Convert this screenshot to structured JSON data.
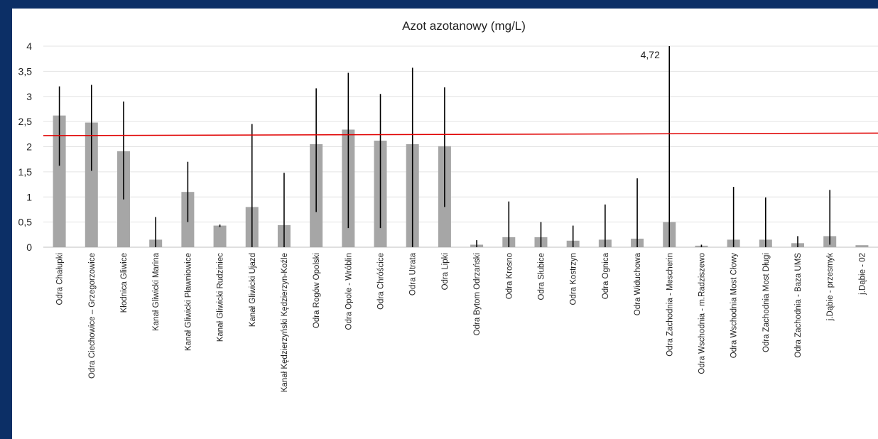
{
  "chart_data": {
    "type": "bar",
    "title": "Azot azotanowy (mg/L)",
    "xlabel": "",
    "ylabel": "",
    "ylim": [
      0,
      4
    ],
    "yticks": [
      "0",
      "0,5",
      "1",
      "1,5",
      "2",
      "2,5",
      "3",
      "3,5",
      "4"
    ],
    "grid": true,
    "legend": "none",
    "bar_color": "#a6a6a6",
    "errorbar_color": "#000000",
    "reference_line": {
      "from": 2.22,
      "to": 2.27,
      "color": "#e00000"
    },
    "annotation": {
      "text": "4,72",
      "category_index": 19
    },
    "categories": [
      "Odra Chałupki",
      "Odra Ciechowice – Grzegorzowice",
      "Kłodnica Gliwice",
      "Kanał Gliwicki Marina",
      "Kanał Gliwicki Pławniowice",
      "Kanał Gliwicki Rudziniec",
      "Kanał Gliwicki Ujazd",
      "Kanał Kędzierzyński Kędzierzyn-Koźle",
      "Odra Rogów Opolski",
      "Odra Opole - Wróblin",
      "Odra Chróścice",
      "Odra Utrata",
      "Odra Lipki",
      "Odra Bytom Odrzański",
      "Odra Krosno",
      "Odra Słubice",
      "Odra Kostrzyn",
      "Odra Ognica",
      "Odra Widuchowa",
      "Odra Zachodnia - Mescherin",
      "Odra Wschodnia - m.Radziszewo",
      "Odra Wschodnia Most Cłowy",
      "Odra Zachodnia Most Długi",
      "Odra Zachodnia - Baza UMS",
      "j.Dąbie - przesmyk",
      "j.Dąbie - 02"
    ],
    "values": [
      2.62,
      2.48,
      1.91,
      0.15,
      1.1,
      0.43,
      0.8,
      0.44,
      2.05,
      2.34,
      2.12,
      2.05,
      2.01,
      0.05,
      0.2,
      0.2,
      0.13,
      0.15,
      0.17,
      0.5,
      0.03,
      0.15,
      0.15,
      0.08,
      0.22,
      0.04
    ],
    "err_low": [
      1.62,
      1.52,
      0.95,
      0.0,
      0.5,
      0.4,
      0.0,
      0.0,
      0.7,
      0.38,
      0.38,
      0.0,
      0.8,
      0.0,
      0.0,
      0.0,
      0.0,
      0.0,
      0.0,
      0.0,
      0.0,
      0.0,
      0.0,
      0.0,
      0.05,
      null
    ],
    "err_high": [
      3.2,
      3.23,
      2.9,
      0.6,
      1.7,
      0.45,
      2.45,
      1.48,
      3.16,
      3.47,
      3.05,
      3.57,
      3.18,
      0.14,
      0.91,
      0.5,
      0.43,
      0.85,
      1.37,
      4.72,
      0.05,
      1.2,
      0.99,
      0.22,
      1.14,
      null
    ]
  }
}
